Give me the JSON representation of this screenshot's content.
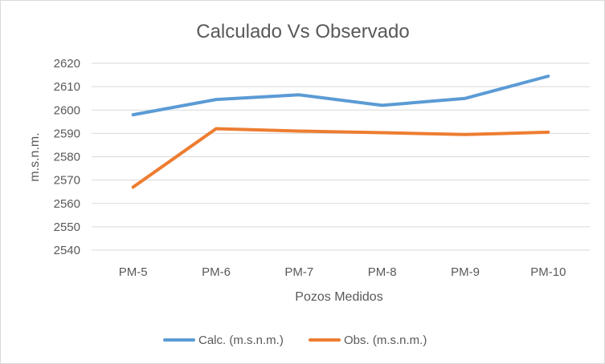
{
  "chart_data": {
    "type": "line",
    "title": "Calculado Vs Observado",
    "xlabel": "Pozos Medidos",
    "ylabel": "m.s.n.m.",
    "categories": [
      "PM-5",
      "PM-6",
      "PM-7",
      "PM-8",
      "PM-9",
      "PM-10"
    ],
    "ylim": [
      2540,
      2620
    ],
    "yticks": [
      "2540",
      "2550",
      "2560",
      "2570",
      "2580",
      "2590",
      "2600",
      "2610",
      "2620"
    ],
    "grid": true,
    "legend_position": "bottom",
    "series": [
      {
        "name": "Calc. (m.s.n.m.)",
        "color": "#5b9bd5",
        "values": [
          2598,
          2604.5,
          2606.5,
          2602,
          2605,
          2614.5
        ]
      },
      {
        "name": "Obs. (m.s.n.m.)",
        "color": "#ed7d31",
        "values": [
          2567,
          2592,
          2591,
          2590.3,
          2589.5,
          2590.5
        ]
      }
    ]
  }
}
